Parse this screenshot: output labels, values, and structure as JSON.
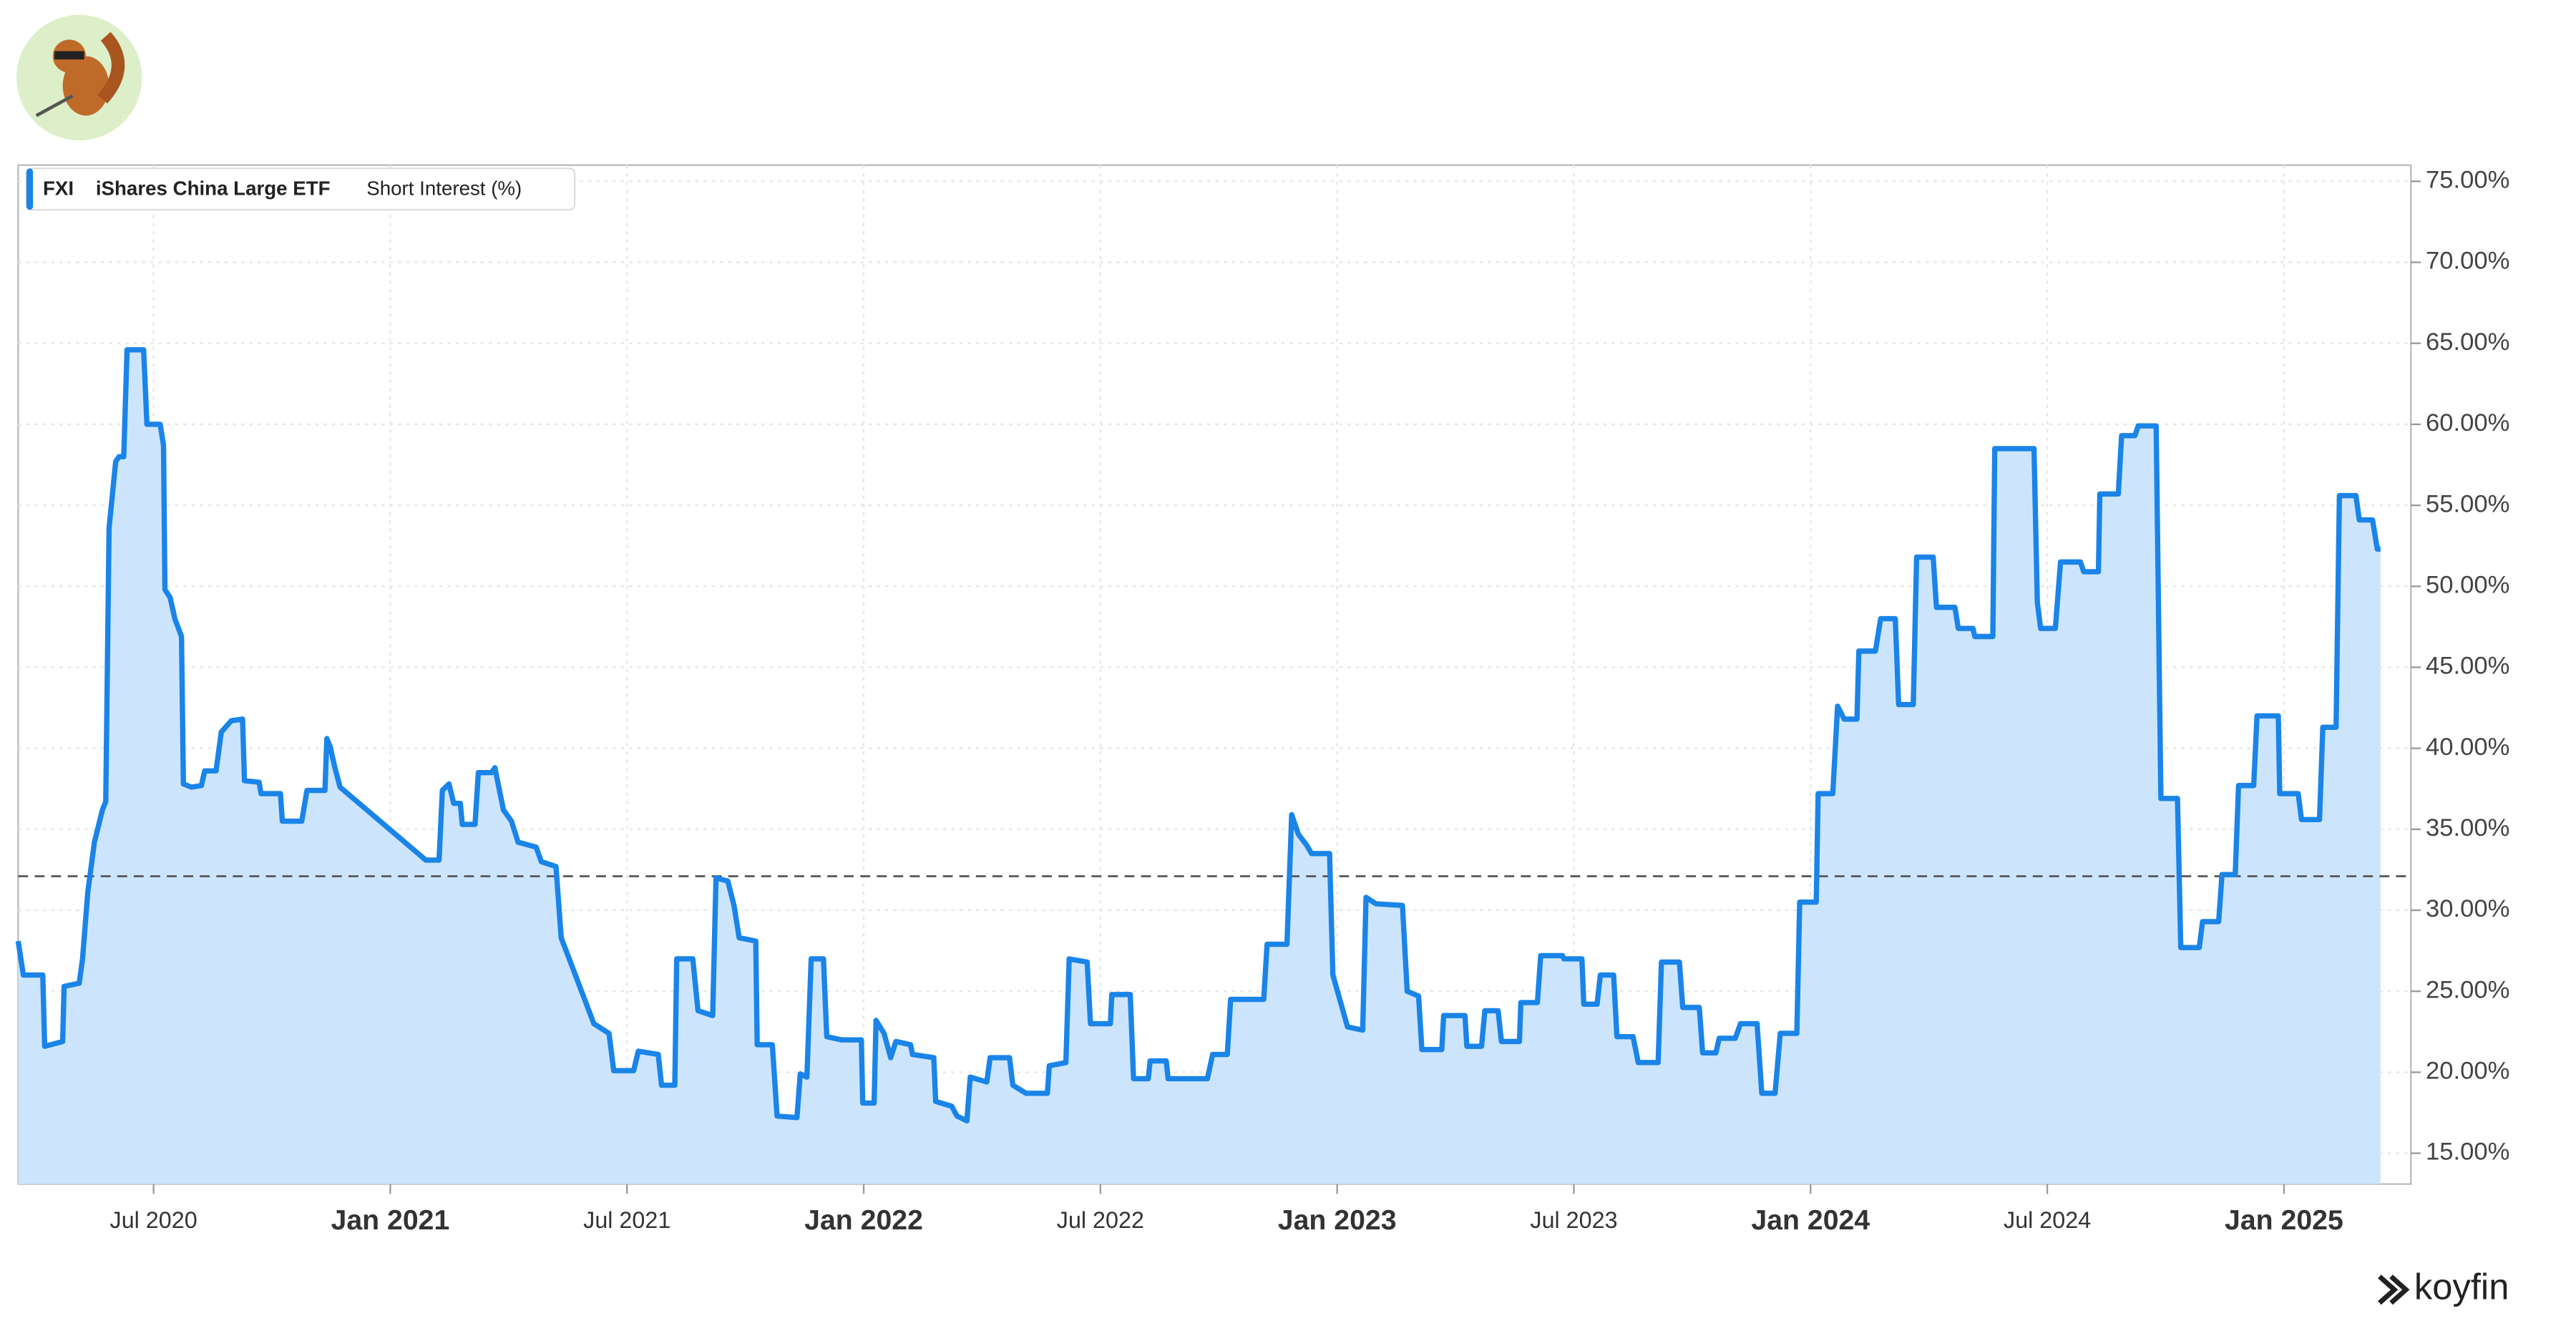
{
  "chart_data": {
    "type": "line",
    "ticker": "FXI",
    "security": "iShares China Large ETF",
    "brand": "koyfin",
    "x": [
      2020.214,
      2020.225,
      2020.266,
      2020.27,
      2020.308,
      2020.311,
      2020.343,
      2020.35,
      2020.361,
      2020.375,
      2020.392,
      2020.399,
      2020.406,
      2020.42,
      2020.427,
      2020.437,
      2020.444,
      2020.479,
      2020.486,
      2020.514,
      2020.521,
      2020.524,
      2020.535,
      2020.545,
      2020.559,
      2020.563,
      2020.58,
      2020.601,
      2020.608,
      2020.632,
      2020.643,
      2020.664,
      2020.688,
      2020.692,
      2020.723,
      2020.727,
      2020.768,
      2020.772,
      2020.813,
      2020.824,
      2020.862,
      2020.866,
      2020.873,
      2020.883,
      2020.894,
      2021.075,
      2021.103,
      2021.11,
      2021.124,
      2021.134,
      2021.148,
      2021.152,
      2021.179,
      2021.186,
      2021.214,
      2021.221,
      2021.239,
      2021.256,
      2021.27,
      2021.308,
      2021.319,
      2021.35,
      2021.361,
      2021.378,
      2021.43,
      2021.462,
      2021.472,
      2021.514,
      2021.524,
      2021.566,
      2021.573,
      2021.601,
      2021.605,
      2021.639,
      2021.65,
      2021.681,
      2021.688,
      2021.713,
      2021.726,
      2021.737,
      2021.772,
      2021.775,
      2021.807,
      2021.817,
      2021.859,
      2021.866,
      2021.88,
      2021.889,
      2021.915,
      2021.922,
      2021.953,
      2021.995,
      2021.998,
      2022.022,
      2022.026,
      2022.043,
      2022.057,
      2022.068,
      2022.099,
      2022.103,
      2022.148,
      2022.152,
      2022.186,
      2022.197,
      2022.218,
      2022.225,
      2022.26,
      2022.267,
      2022.308,
      2022.315,
      2022.343,
      2022.388,
      2022.392,
      2022.427,
      2022.434,
      2022.472,
      2022.479,
      2022.521,
      2022.524,
      2022.563,
      2022.57,
      2022.601,
      2022.605,
      2022.639,
      2022.643,
      2022.726,
      2022.737,
      2022.768,
      2022.775,
      2022.845,
      2022.852,
      2022.894,
      2022.904,
      2022.918,
      2022.936,
      2022.946,
      2022.984,
      2022.991,
      2023.022,
      2023.054,
      2023.061,
      2023.082,
      2023.138,
      2023.148,
      2023.172,
      2023.179,
      2023.221,
      2023.225,
      2023.27,
      2023.274,
      2023.305,
      2023.312,
      2023.34,
      2023.347,
      2023.385,
      2023.388,
      2023.423,
      2023.43,
      2023.476,
      2023.479,
      2023.517,
      2023.521,
      2023.549,
      2023.556,
      2023.584,
      2023.591,
      2023.625,
      2023.636,
      2023.678,
      2023.685,
      2023.723,
      2023.73,
      2023.765,
      2023.772,
      2023.8,
      2023.807,
      2023.841,
      2023.852,
      2023.887,
      2023.897,
      2023.925,
      2023.936,
      2023.971,
      2023.977,
      2024.012,
      2024.016,
      2024.047,
      2024.057,
      2024.071,
      2024.098,
      2024.102,
      2024.137,
      2024.148,
      2024.179,
      2024.186,
      2024.217,
      2024.224,
      2024.259,
      2024.266,
      2024.305,
      2024.312,
      2024.343,
      2024.347,
      2024.385,
      2024.389,
      2024.472,
      2024.479,
      2024.486,
      2024.517,
      2024.528,
      2024.57,
      2024.577,
      2024.608,
      2024.611,
      2024.65,
      2024.657,
      2024.685,
      2024.692,
      2024.73,
      2024.74,
      2024.775,
      2024.782,
      2024.821,
      2024.828,
      2024.862,
      2024.869,
      2024.897,
      2024.904,
      2024.936,
      2024.943,
      2024.988,
      2024.991,
      2025.03,
      2025.037,
      2025.075,
      2025.082,
      2025.11,
      2025.117,
      2025.152,
      2025.159,
      2025.187,
      2025.197,
      2025.204
    ],
    "series": [
      {
        "name": "Short Interest (%)",
        "color": "#1a84e8",
        "fill": "#cde5fc",
        "values": [
          28.1,
          26.0,
          26.0,
          21.6,
          21.9,
          25.3,
          25.5,
          27.0,
          31.1,
          34.2,
          36.2,
          36.7,
          53.6,
          57.7,
          58.0,
          58.0,
          64.6,
          64.6,
          60.0,
          60.0,
          58.7,
          49.8,
          49.3,
          48.0,
          46.9,
          37.8,
          37.6,
          37.7,
          38.6,
          38.6,
          41.0,
          41.7,
          41.8,
          38.0,
          37.9,
          37.2,
          37.2,
          35.5,
          35.5,
          37.4,
          37.4,
          40.6,
          40.1,
          38.8,
          37.6,
          33.1,
          33.1,
          37.4,
          37.8,
          36.6,
          36.6,
          35.3,
          35.3,
          38.5,
          38.5,
          38.8,
          36.2,
          35.5,
          34.2,
          33.9,
          33.0,
          32.7,
          28.3,
          27.0,
          23.0,
          22.4,
          20.1,
          20.1,
          21.3,
          21.1,
          19.2,
          19.2,
          27.0,
          27.0,
          23.8,
          23.5,
          32.0,
          31.8,
          30.3,
          28.3,
          28.1,
          21.7,
          21.7,
          17.3,
          17.2,
          19.9,
          19.7,
          27.0,
          27.0,
          22.2,
          22.0,
          22.0,
          18.1,
          18.1,
          23.2,
          22.4,
          20.9,
          21.9,
          21.7,
          21.1,
          20.9,
          18.2,
          17.9,
          17.3,
          17.0,
          19.7,
          19.4,
          20.9,
          20.9,
          19.2,
          18.7,
          18.7,
          20.4,
          20.6,
          27.0,
          26.8,
          23.0,
          23.0,
          24.8,
          24.8,
          19.6,
          19.6,
          20.7,
          20.7,
          19.6,
          19.6,
          21.1,
          21.1,
          24.5,
          24.5,
          27.9,
          27.9,
          35.9,
          34.7,
          34.0,
          33.5,
          33.5,
          26.0,
          22.8,
          22.6,
          30.8,
          30.4,
          30.3,
          25.0,
          24.7,
          21.4,
          21.4,
          23.5,
          23.5,
          21.6,
          21.6,
          23.8,
          23.8,
          21.9,
          21.9,
          24.3,
          24.3,
          27.2,
          27.2,
          27.0,
          27.0,
          24.2,
          24.2,
          26.0,
          26.0,
          22.2,
          22.2,
          20.6,
          20.6,
          26.8,
          26.8,
          24.0,
          24.0,
          21.2,
          21.2,
          22.1,
          22.1,
          23.0,
          23.0,
          18.7,
          18.7,
          22.4,
          22.4,
          30.5,
          30.5,
          37.2,
          37.2,
          42.6,
          41.8,
          41.8,
          46.0,
          46.0,
          48.0,
          48.0,
          42.7,
          42.7,
          51.8,
          51.8,
          48.7,
          48.7,
          47.4,
          47.4,
          46.9,
          46.9,
          58.5,
          58.5,
          49.0,
          47.4,
          47.4,
          51.5,
          51.5,
          50.9,
          50.9,
          55.7,
          55.7,
          59.3,
          59.3,
          59.9,
          59.9,
          36.9,
          36.9,
          27.7,
          27.7,
          29.3,
          29.3,
          32.2,
          32.2,
          37.7,
          37.7,
          42.0,
          42.0,
          37.2,
          37.2,
          35.6,
          35.6,
          41.3,
          41.3,
          55.6,
          55.6,
          54.1,
          54.1,
          52.3,
          52.3
        ]
      }
    ],
    "reference_line": 32.1,
    "xlim": [
      2020.214,
      2025.268
    ],
    "ylim": [
      13.1,
      76
    ],
    "xticks": [
      {
        "value": 2020.5,
        "label": "Jul 2020"
      },
      {
        "value": 2021,
        "label": "Jan 2021"
      },
      {
        "value": 2021.5,
        "label": "Jul 2021"
      },
      {
        "value": 2022,
        "label": "Jan 2022"
      },
      {
        "value": 2022.5,
        "label": "Jul 2022"
      },
      {
        "value": 2023,
        "label": "Jan 2023"
      },
      {
        "value": 2023.5,
        "label": "Jul 2023"
      },
      {
        "value": 2024,
        "label": "Jan 2024"
      },
      {
        "value": 2024.5,
        "label": "Jul 2024"
      },
      {
        "value": 2025,
        "label": "Jan 2025"
      }
    ],
    "yticks": [
      {
        "value": 15,
        "label": "15.00%"
      },
      {
        "value": 20,
        "label": "20.00%"
      },
      {
        "value": 25,
        "label": "25.00%"
      },
      {
        "value": 30,
        "label": "30.00%"
      },
      {
        "value": 35,
        "label": "35.00%"
      },
      {
        "value": 40,
        "label": "40.00%"
      },
      {
        "value": 45,
        "label": "45.00%"
      },
      {
        "value": 50,
        "label": "50.00%"
      },
      {
        "value": 55,
        "label": "55.00%"
      },
      {
        "value": 60,
        "label": "60.00%"
      },
      {
        "value": 65,
        "label": "65.00%"
      },
      {
        "value": 70,
        "label": "70.00%"
      },
      {
        "value": 75,
        "label": "75.00%"
      }
    ],
    "grid": true
  }
}
